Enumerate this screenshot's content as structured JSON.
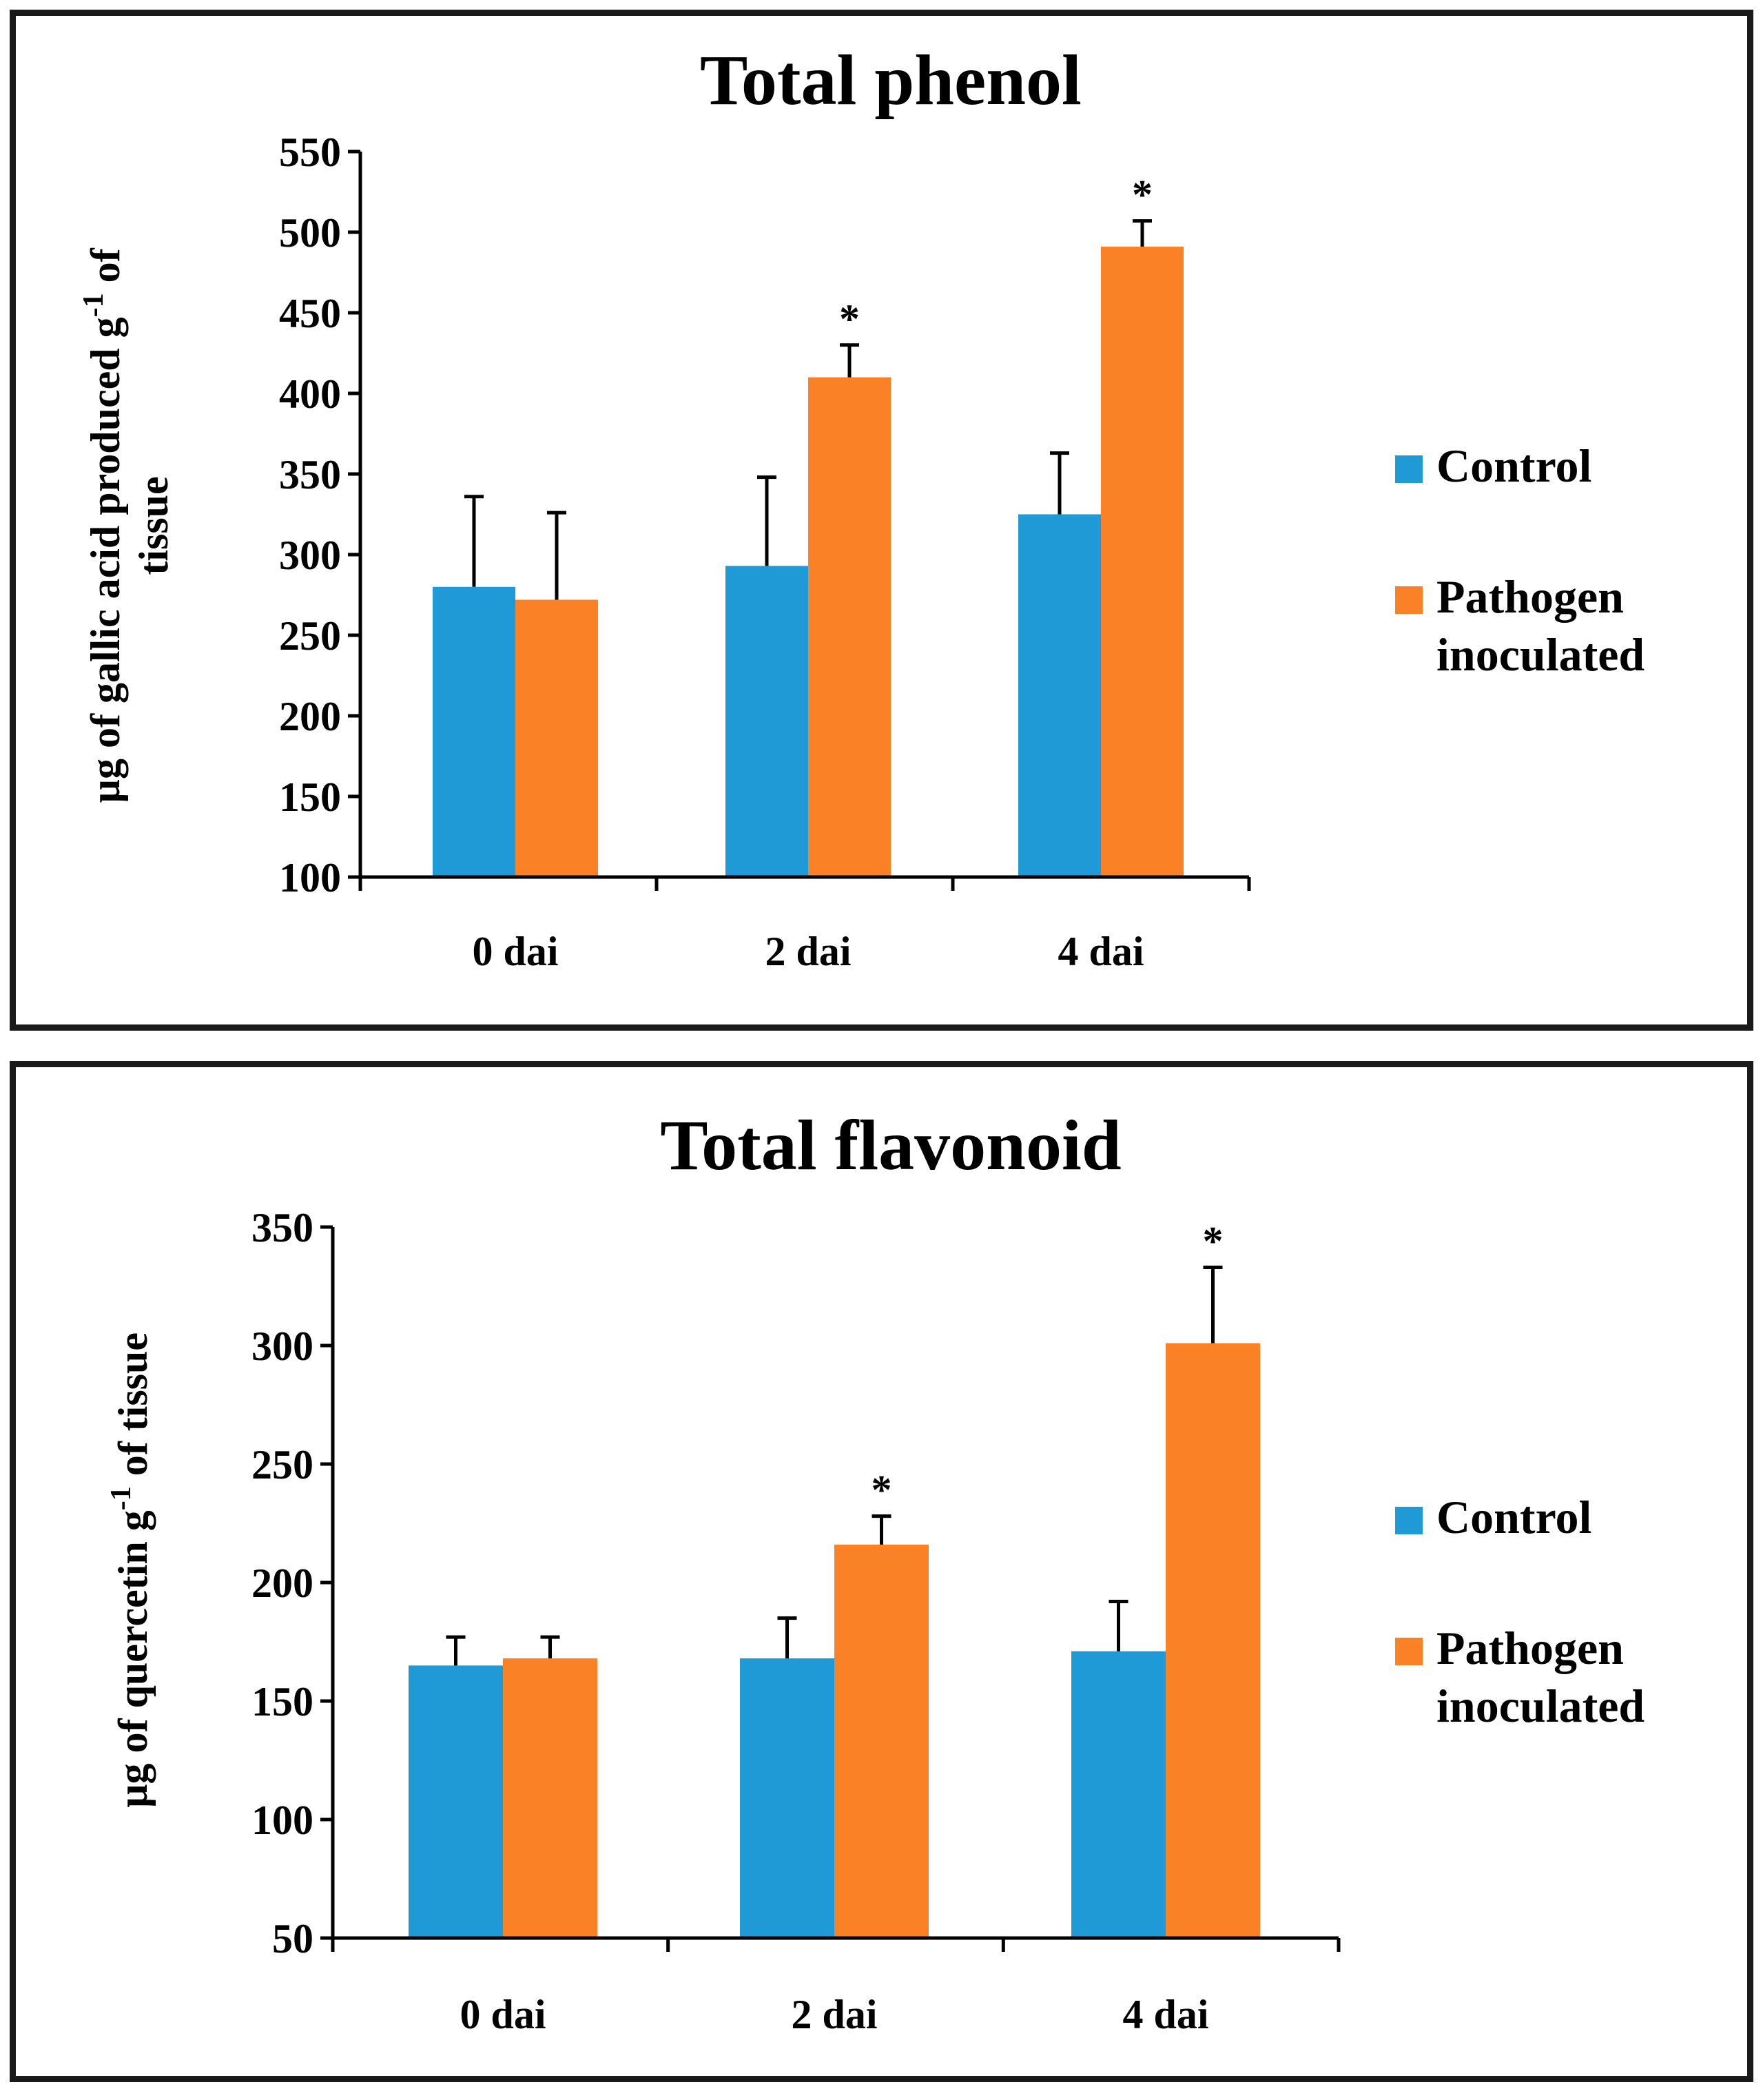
{
  "colors": {
    "control": "#1f9ad6",
    "pathogen": "#fb8126"
  },
  "chart_data": [
    {
      "type": "bar",
      "title": "Total phenol",
      "ylabel_line1": "µg of gallic acid produced g",
      "ylabel_sup": "-1",
      "ylabel_suffix": " of",
      "ylabel_line2": "tissue",
      "categories": [
        "0 dai",
        "2 dai",
        "4 dai"
      ],
      "ylim": [
        100,
        550
      ],
      "yticks": [
        100,
        150,
        200,
        250,
        300,
        350,
        400,
        450,
        500,
        550
      ],
      "series": [
        {
          "name": "Control",
          "values": [
            280,
            293,
            325
          ],
          "errors": [
            56,
            55,
            38
          ]
        },
        {
          "name": "Pathogen inoculated",
          "legend_line1": "Pathogen",
          "legend_line2": "inoculated",
          "values": [
            272,
            410,
            491
          ],
          "errors": [
            54,
            20,
            16
          ]
        }
      ],
      "significance": [
        "",
        "*",
        "*"
      ]
    },
    {
      "type": "bar",
      "title": "Total flavonoid",
      "ylabel_line1": "µg of quercetin g",
      "ylabel_sup": "-1",
      "ylabel_suffix": " of tissue",
      "categories": [
        "0 dai",
        "2 dai",
        "4 dai"
      ],
      "ylim": [
        50,
        350
      ],
      "yticks": [
        50,
        100,
        150,
        200,
        250,
        300,
        350
      ],
      "series": [
        {
          "name": "Control",
          "values": [
            165,
            168,
            171
          ],
          "errors": [
            12,
            17,
            21
          ]
        },
        {
          "name": "Pathogen inoculated",
          "legend_line1": "Pathogen",
          "legend_line2": "inoculated",
          "values": [
            168,
            216,
            301
          ],
          "errors": [
            9,
            12,
            32
          ]
        }
      ],
      "significance": [
        "",
        "*",
        "*"
      ]
    }
  ]
}
